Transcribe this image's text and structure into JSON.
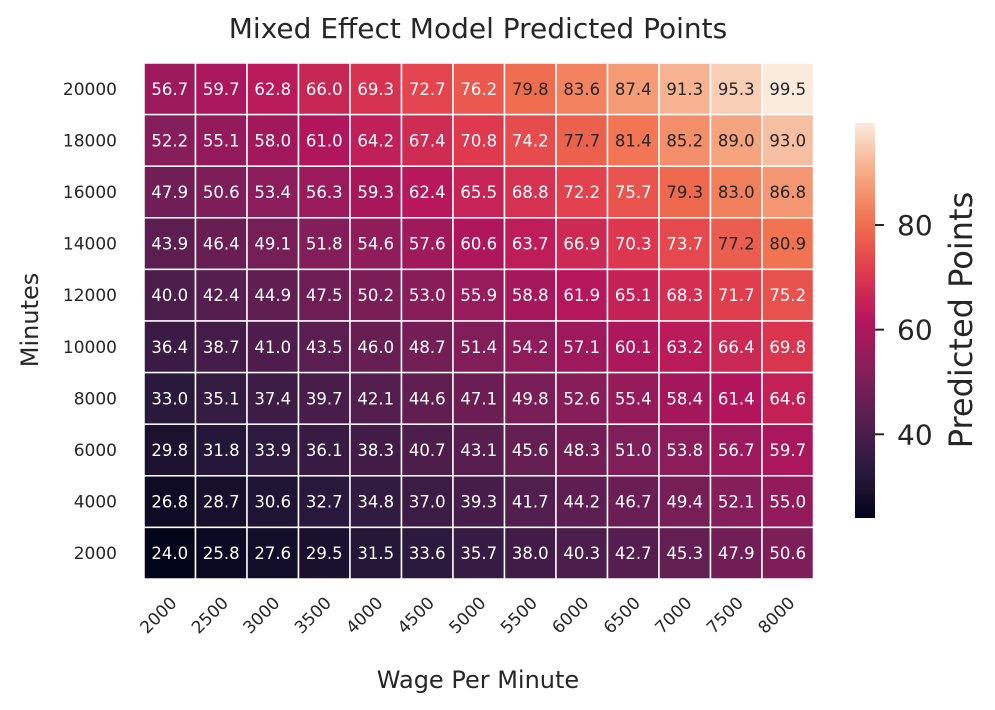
{
  "chart_data": {
    "type": "heatmap",
    "title": "Mixed Effect Model Predicted Points",
    "xlabel": "Wage Per Minute",
    "ylabel": "Minutes",
    "x_categories": [
      "2000",
      "2500",
      "3000",
      "3500",
      "4000",
      "4500",
      "5000",
      "5500",
      "6000",
      "6500",
      "7000",
      "7500",
      "8000"
    ],
    "y_categories": [
      "20000",
      "18000",
      "16000",
      "14000",
      "12000",
      "10000",
      "8000",
      "6000",
      "4000",
      "2000"
    ],
    "values": [
      [
        56.7,
        59.7,
        62.8,
        66.0,
        69.3,
        72.7,
        76.2,
        79.8,
        83.6,
        87.4,
        91.3,
        95.3,
        99.5
      ],
      [
        52.2,
        55.1,
        58.0,
        61.0,
        64.2,
        67.4,
        70.8,
        74.2,
        77.7,
        81.4,
        85.2,
        89.0,
        93.0
      ],
      [
        47.9,
        50.6,
        53.4,
        56.3,
        59.3,
        62.4,
        65.5,
        68.8,
        72.2,
        75.7,
        79.3,
        83.0,
        86.8
      ],
      [
        43.9,
        46.4,
        49.1,
        51.8,
        54.6,
        57.6,
        60.6,
        63.7,
        66.9,
        70.3,
        73.7,
        77.2,
        80.9
      ],
      [
        40.0,
        42.4,
        44.9,
        47.5,
        50.2,
        53.0,
        55.9,
        58.8,
        61.9,
        65.1,
        68.3,
        71.7,
        75.2
      ],
      [
        36.4,
        38.7,
        41.0,
        43.5,
        46.0,
        48.7,
        51.4,
        54.2,
        57.1,
        60.1,
        63.2,
        66.4,
        69.8
      ],
      [
        33.0,
        35.1,
        37.4,
        39.7,
        42.1,
        44.6,
        47.1,
        49.8,
        52.6,
        55.4,
        58.4,
        61.4,
        64.6
      ],
      [
        29.8,
        31.8,
        33.9,
        36.1,
        38.3,
        40.7,
        43.1,
        45.6,
        48.3,
        51.0,
        53.8,
        56.7,
        59.7
      ],
      [
        26.8,
        28.7,
        30.6,
        32.7,
        34.8,
        37.0,
        39.3,
        41.7,
        44.2,
        46.7,
        49.4,
        52.1,
        55.0
      ],
      [
        24.0,
        25.8,
        27.6,
        29.5,
        31.5,
        33.6,
        35.7,
        38.0,
        40.3,
        42.7,
        45.3,
        47.9,
        50.6
      ]
    ],
    "colormap": "rocket",
    "vmin": 24.0,
    "vmax": 99.5,
    "annotations": "on",
    "cell_border_color": "#ffffff",
    "colorbar": {
      "label": "Predicted Points",
      "ticks": [
        40,
        60,
        80
      ],
      "placement": "right"
    }
  }
}
